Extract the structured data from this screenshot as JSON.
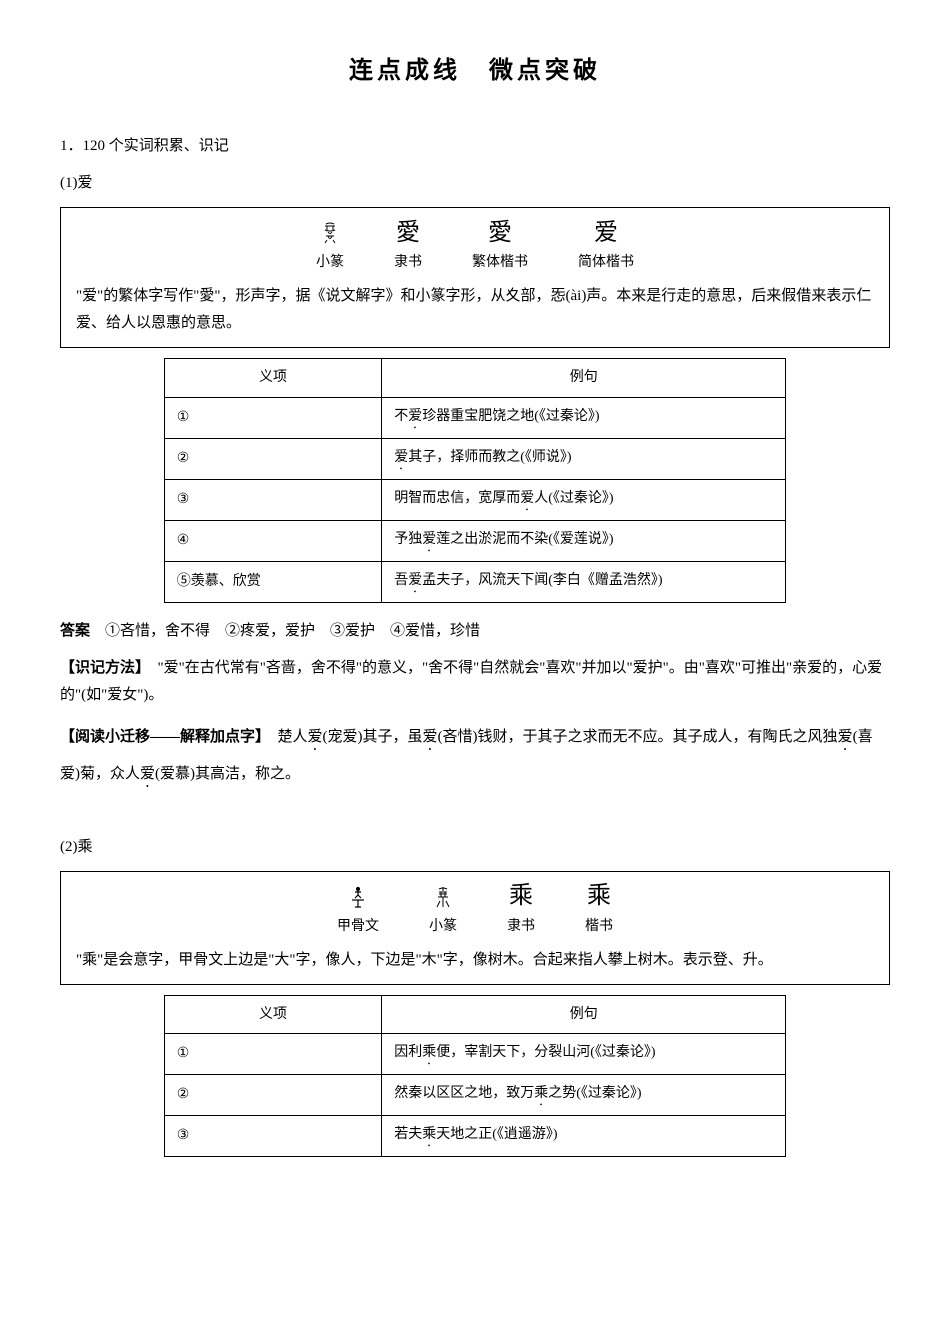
{
  "title": "连点成线　微点突破",
  "section1": {
    "header": "1．120 个实词积累、识记",
    "sub1": {
      "label": "(1)爱",
      "glyphs": [
        {
          "char": "svg-xiaozhuan-ai",
          "label": "小篆"
        },
        {
          "char": "愛",
          "label": "隶书"
        },
        {
          "char": "愛",
          "label": "繁体楷书"
        },
        {
          "char": "爱",
          "label": "简体楷书"
        }
      ],
      "glyph_desc": "\"爱\"的繁体字写作\"愛\"，形声字，据《说文解字》和小篆字形，从夊部，㤅(ài)声。本来是行走的意思，后来假借来表示仁爱、给人以恩惠的意思。",
      "table": {
        "header_meaning": "义项",
        "header_example": "例句",
        "rows": [
          {
            "meaning": "①",
            "example_pre": "不",
            "example_dot": "爱",
            "example_post": "珍器重宝肥饶之地(《过秦论》)"
          },
          {
            "meaning": "②",
            "example_pre": "",
            "example_dot": "爱",
            "example_post": "其子，择师而教之(《师说》)"
          },
          {
            "meaning": "③",
            "example_pre": "明智而忠信，宽厚而",
            "example_dot": "爱",
            "example_post": "人(《过秦论》)"
          },
          {
            "meaning": "④",
            "example_pre": "予独",
            "example_dot": "爱",
            "example_post": "莲之出淤泥而不染(《爱莲说》)"
          },
          {
            "meaning": "⑤羡慕、欣赏",
            "example_pre": "吾",
            "example_dot": "爱",
            "example_post": "孟夫子，风流天下闻(李白《赠孟浩然》)"
          }
        ]
      },
      "answer_label": "答案",
      "answer_text": "　①吝惜，舍不得　②疼爱，爱护　③爱护　④爱惜，珍惜",
      "method_label": "【识记方法】",
      "method_text": "　\"爱\"在古代常有\"吝啬，舍不得\"的意义，\"舍不得\"自然就会\"喜欢\"并加以\"爱护\"。由\"喜欢\"可推出\"亲爱的，心爱的\"(如\"爱女\")。",
      "reading_label": "【阅读小迁移——解释加点字】",
      "reading_parts": [
        {
          "t": "　楚人",
          "d": false
        },
        {
          "t": "爱",
          "d": true
        },
        {
          "t": "(宠爱)其子，虽",
          "d": false
        },
        {
          "t": "爱",
          "d": true
        },
        {
          "t": "(吝惜)钱财，于其子之求而无不应。其子成人，有陶氏之风独",
          "d": false
        },
        {
          "t": "爱",
          "d": true
        },
        {
          "t": "(喜爱)菊，众人",
          "d": false
        },
        {
          "t": "爱",
          "d": true
        },
        {
          "t": "(爱慕)其高洁，称之。",
          "d": false
        }
      ]
    },
    "sub2": {
      "label": "(2)乘",
      "glyphs": [
        {
          "char": "svg-jiagu-cheng",
          "label": "甲骨文"
        },
        {
          "char": "svg-xiaozhuan-cheng",
          "label": "小篆"
        },
        {
          "char": "乘",
          "label": "隶书"
        },
        {
          "char": "乘",
          "label": "楷书"
        }
      ],
      "glyph_desc": "\"乘\"是会意字，甲骨文上边是\"大\"字，像人，下边是\"木\"字，像树木。合起来指人攀上树木。表示登、升。",
      "table": {
        "header_meaning": "义项",
        "header_example": "例句",
        "rows": [
          {
            "meaning": "①",
            "example_pre": "因利",
            "example_dot": "乘",
            "example_post": "便，宰割天下，分裂山河(《过秦论》)"
          },
          {
            "meaning": "②",
            "example_pre": "然秦以区区之地，致万",
            "example_dot": "乘",
            "example_post": "之势(《过秦论》)"
          },
          {
            "meaning": "③",
            "example_pre": "若夫",
            "example_dot": "乘",
            "example_post": "天地之正(《逍遥游》)"
          }
        ]
      }
    }
  }
}
